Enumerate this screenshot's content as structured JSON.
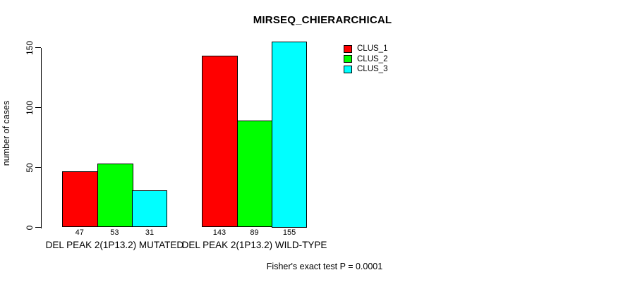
{
  "chart_data": {
    "type": "bar",
    "title": "MIRSEQ_CHIERARCHICAL",
    "xlabel": "",
    "ylabel": "number of cases",
    "ylim": [
      0,
      155
    ],
    "yticks": [
      0,
      50,
      100,
      150
    ],
    "grid": false,
    "legend_position": "top-right",
    "background_color": "#ffffff",
    "bar_border_color": "#000000",
    "categories": [
      "DEL PEAK  2(1P13.2) MUTATED",
      "DEL PEAK  2(1P13.2) WILD-TYPE"
    ],
    "series": [
      {
        "name": "CLUS_1",
        "color": "#ff0000",
        "values": [
          47,
          143
        ]
      },
      {
        "name": "CLUS_2",
        "color": "#00ff00",
        "values": [
          53,
          89
        ]
      },
      {
        "name": "CLUS_3",
        "color": "#00ffff",
        "values": [
          31,
          155
        ]
      }
    ],
    "bar_labels": [
      [
        "47",
        "53",
        "31"
      ],
      [
        "143",
        "89",
        "155"
      ]
    ],
    "annotation": "Fisher's exact test P = 0.0001"
  }
}
